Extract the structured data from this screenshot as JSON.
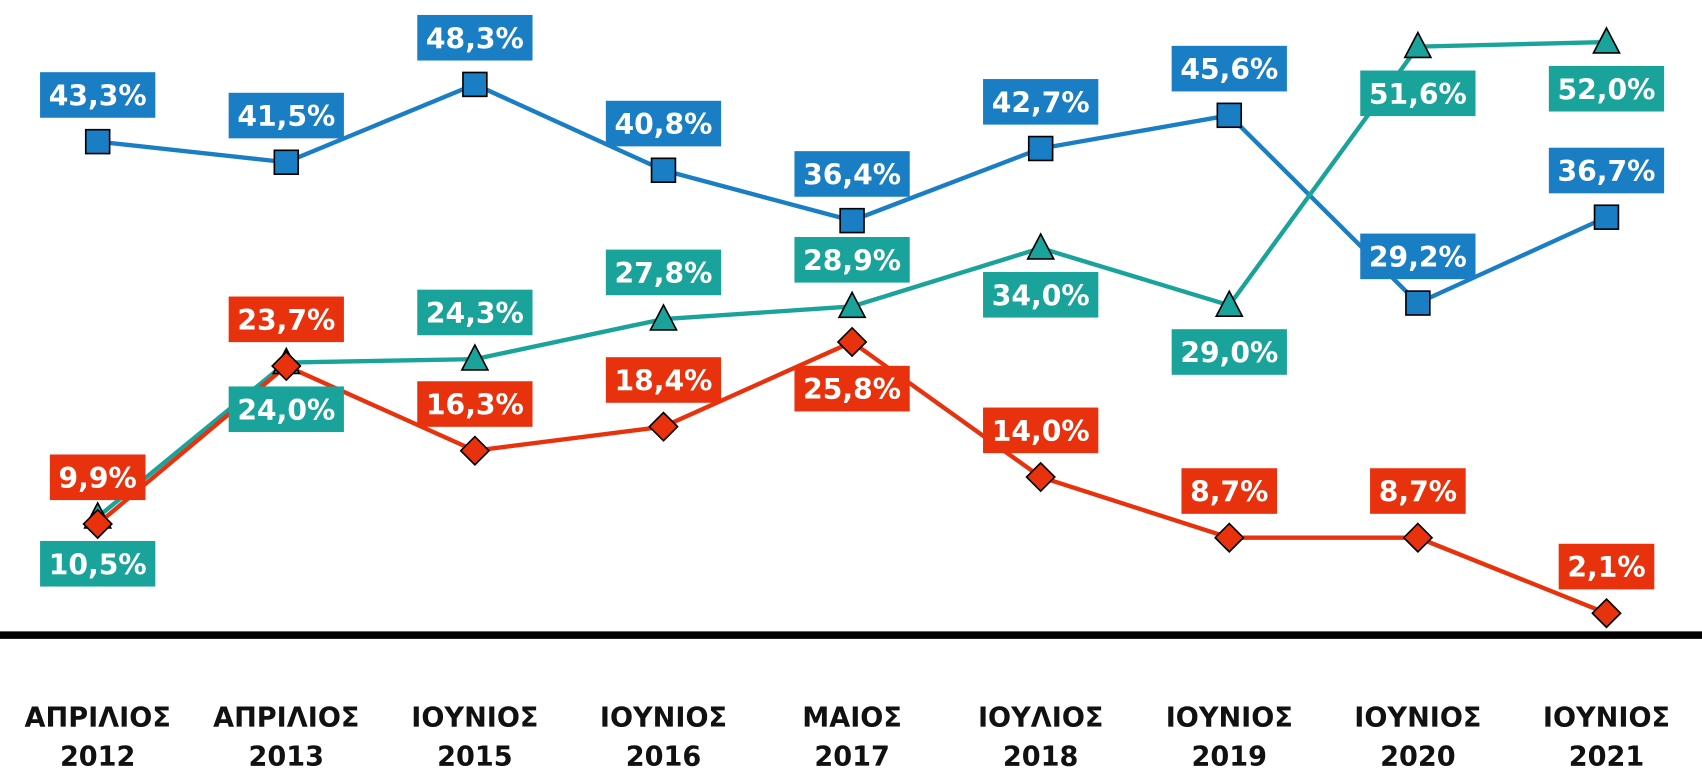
{
  "chart_data": {
    "type": "line",
    "categories": [
      "ΑΠΡΙΛΙΟΣ 2012",
      "ΑΠΡΙΛΙΟΣ 2013",
      "ΙΟΥΝΙΟΣ 2015",
      "ΙΟΥΝΙΟΣ 2016",
      "ΜΑΙΟΣ 2017",
      "ΙΟΥΛΙΟΣ 2018",
      "ΙΟΥΝΙΟΣ 2019",
      "ΙΟΥΝΙΟΣ 2020",
      "ΙΟΥΝΙΟΣ 2021"
    ],
    "ylim": [
      0,
      55
    ],
    "series": [
      {
        "color": "#1a7ec4",
        "marker": "square",
        "values": [
          43.3,
          41.5,
          48.3,
          40.8,
          36.4,
          42.7,
          45.6,
          29.2,
          36.7
        ],
        "value_labels": [
          "43,3%",
          "41,5%",
          "48,3%",
          "40,8%",
          "36,4%",
          "42,7%",
          "45,6%",
          "29,2%",
          "36,7%"
        ]
      },
      {
        "color": "#1aa39a",
        "marker": "triangle",
        "values": [
          10.5,
          24.0,
          24.3,
          27.8,
          28.9,
          34.0,
          29.0,
          51.6,
          52.0
        ],
        "value_labels": [
          "10,5%",
          "24,0%",
          "24,3%",
          "27,8%",
          "28,9%",
          "34,0%",
          "29,0%",
          "51,6%",
          "52,0%"
        ]
      },
      {
        "color": "#e8320e",
        "marker": "diamond",
        "values": [
          9.9,
          23.7,
          16.3,
          18.4,
          25.8,
          14.0,
          8.7,
          8.7,
          2.1
        ],
        "value_labels": [
          "9,9%",
          "23,7%",
          "16,3%",
          "18,4%",
          "25,8%",
          "14,0%",
          "8,7%",
          "8,7%",
          "2,1%"
        ]
      }
    ]
  }
}
